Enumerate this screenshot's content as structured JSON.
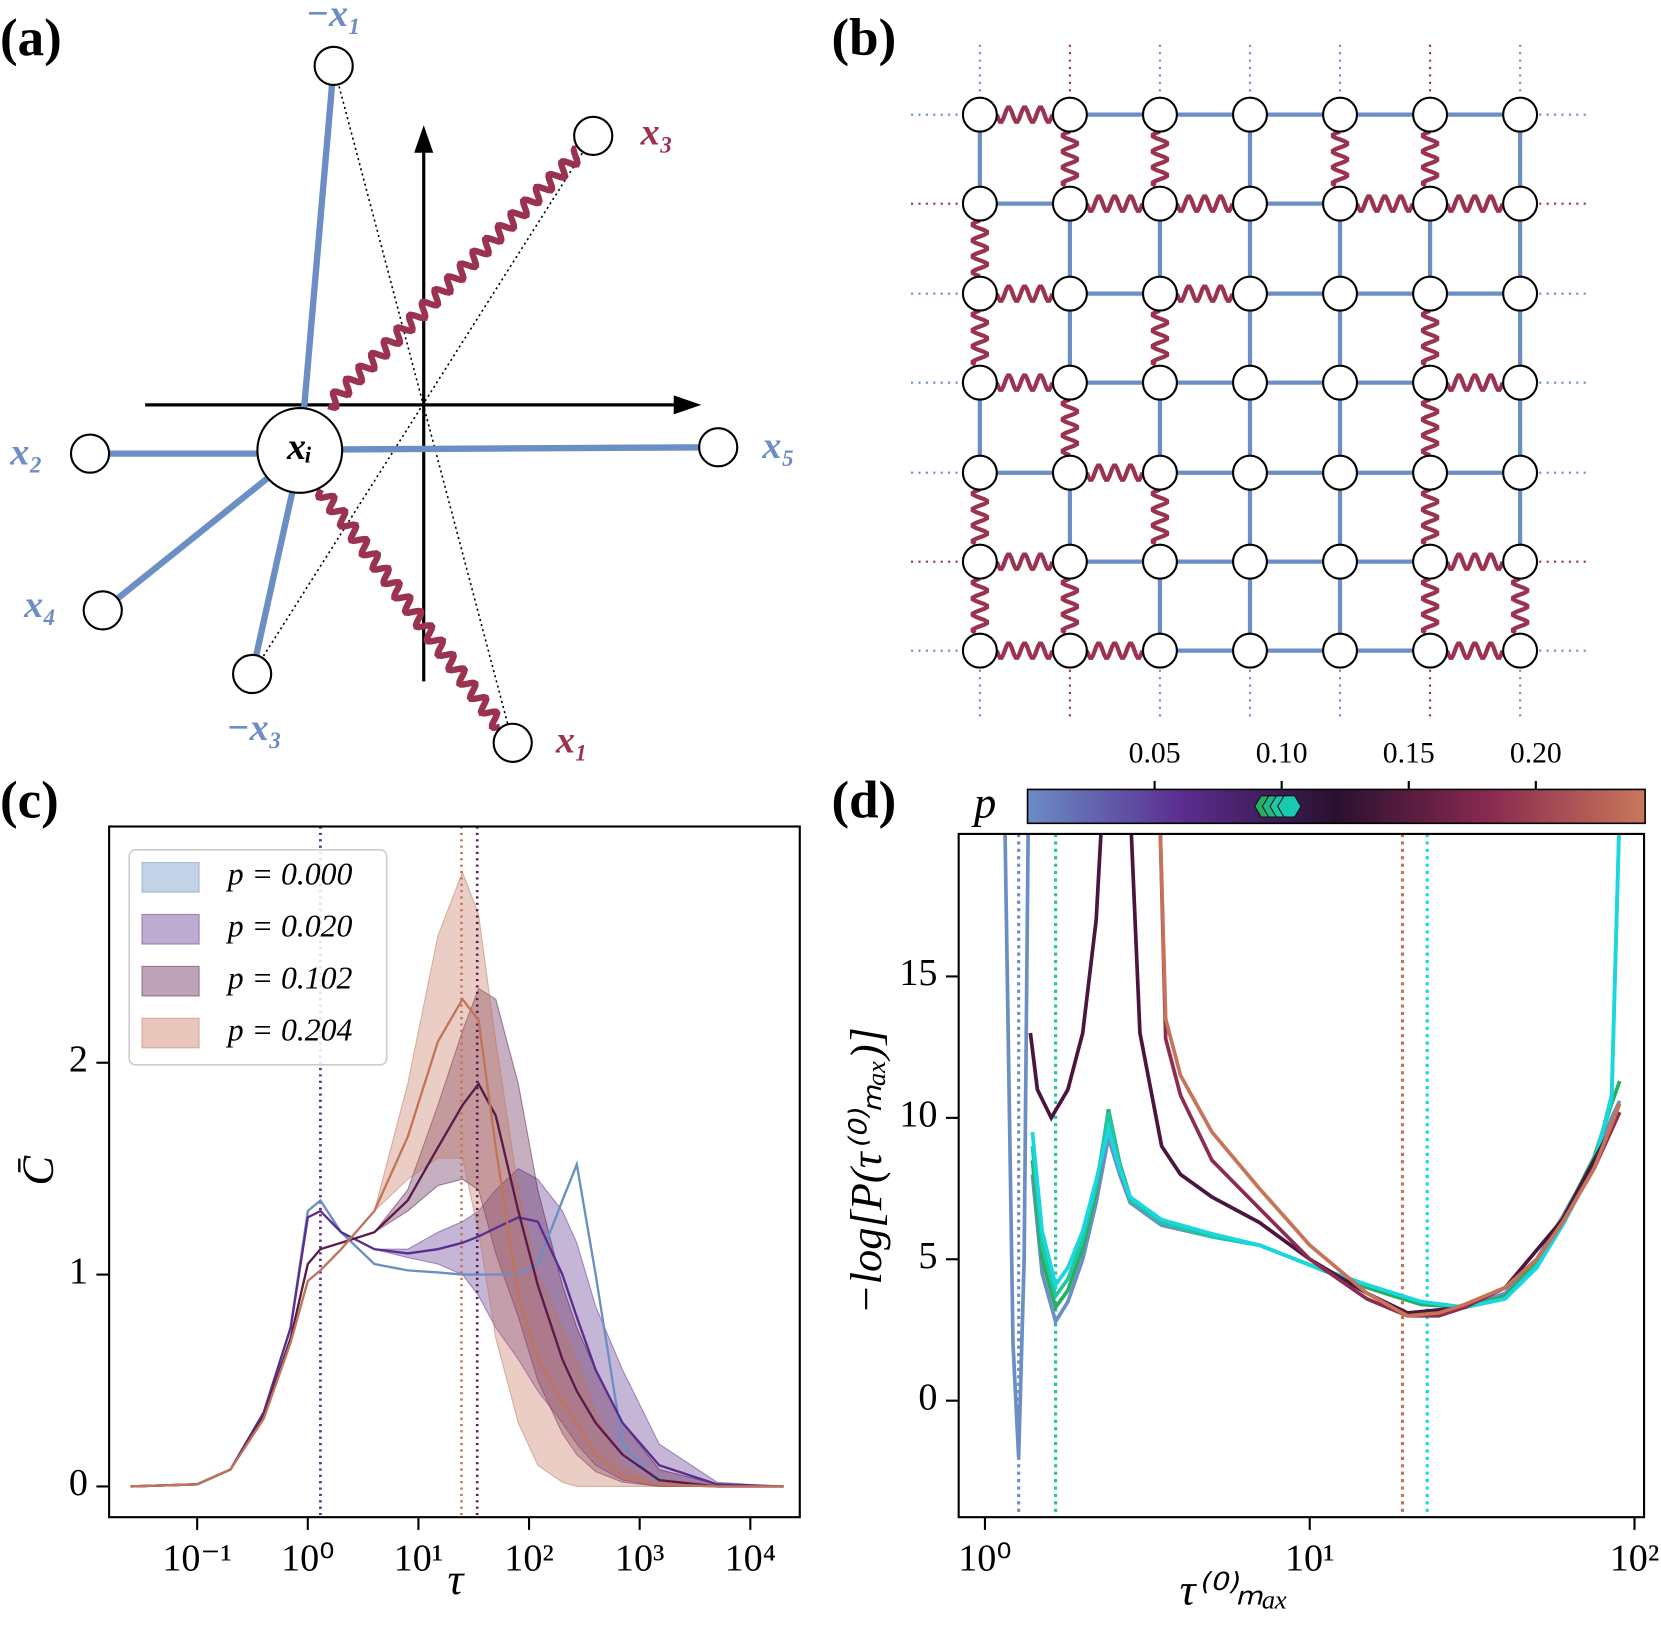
{
  "diagram_a": {
    "panel_label": "(a)",
    "labels": [
      "−x₁",
      "x₃",
      "x₂",
      "xᵢ",
      "x₅",
      "x₄",
      "−x₃",
      "x₁"
    ]
  },
  "diagram_b": {
    "panel_label": "(b)"
  },
  "chart_data": [
    {
      "type": "line",
      "panel_label": "(c)",
      "xlabel": "τ",
      "ylabel": "C̄",
      "xscale": "log",
      "xlim": [
        0.016,
        28000
      ],
      "ylim": [
        -0.145,
        3.115
      ],
      "xticks": [
        {
          "value": 0.1,
          "label": "10⁻¹"
        },
        {
          "value": 1,
          "label": "10⁰"
        },
        {
          "value": 10,
          "label": "10¹"
        },
        {
          "value": 100,
          "label": "10²"
        },
        {
          "value": 1000,
          "label": "10³"
        },
        {
          "value": 10000,
          "label": "10⁴"
        }
      ],
      "yticks": [
        0,
        1,
        2
      ],
      "legend": "upper left",
      "x": [
        0.025,
        0.1,
        0.2,
        0.4,
        0.7,
        1,
        1.3,
        2,
        4,
        8,
        15,
        25,
        35,
        50,
        80,
        120,
        200,
        270,
        400,
        700,
        1500,
        5000,
        20000
      ],
      "series": [
        {
          "name": "p = 0.000",
          "color": "#6b8ec4",
          "vline": 1.3,
          "values": [
            0,
            0.01,
            0.08,
            0.35,
            0.75,
            1.3,
            1.35,
            1.2,
            1.05,
            1.02,
            1.01,
            1.0,
            1.0,
            1.0,
            1.0,
            1.05,
            1.35,
            1.52,
            1.0,
            0.2,
            0.01,
            0,
            0
          ]
        },
        {
          "name": "p = 0.020",
          "color": "#5a2e8e",
          "vline": 1.3,
          "values": [
            0,
            0.01,
            0.08,
            0.35,
            0.75,
            1.27,
            1.3,
            1.2,
            1.12,
            1.1,
            1.12,
            1.15,
            1.18,
            1.22,
            1.27,
            1.25,
            1.0,
            0.8,
            0.55,
            0.3,
            0.1,
            0.01,
            0
          ],
          "lower": [
            0,
            0.01,
            0.08,
            0.35,
            0.75,
            1.27,
            1.3,
            1.2,
            1.12,
            1.08,
            1.05,
            1.0,
            0.9,
            0.75,
            0.6,
            0.45,
            0.3,
            0.2,
            0.1,
            0.03,
            0,
            0,
            0
          ],
          "upper": [
            0,
            0.01,
            0.08,
            0.35,
            0.75,
            1.27,
            1.3,
            1.2,
            1.12,
            1.12,
            1.2,
            1.25,
            1.3,
            1.4,
            1.5,
            1.45,
            1.3,
            1.15,
            0.85,
            0.55,
            0.2,
            0.02,
            0
          ]
        },
        {
          "name": "p = 0.102",
          "color": "#5a1a4a",
          "vline": 34,
          "values": [
            0,
            0.01,
            0.08,
            0.33,
            0.7,
            1.05,
            1.12,
            1.15,
            1.2,
            1.35,
            1.6,
            1.8,
            1.9,
            1.75,
            1.3,
            0.95,
            0.6,
            0.45,
            0.3,
            0.15,
            0.03,
            0,
            0
          ],
          "lower": [
            0,
            0.01,
            0.08,
            0.33,
            0.7,
            1.05,
            1.12,
            1.15,
            1.2,
            1.3,
            1.42,
            1.45,
            1.4,
            1.1,
            0.8,
            0.5,
            0.25,
            0.15,
            0.07,
            0.02,
            0,
            0,
            0
          ],
          "upper": [
            0,
            0.01,
            0.08,
            0.33,
            0.7,
            1.05,
            1.12,
            1.15,
            1.2,
            1.4,
            1.8,
            2.15,
            2.35,
            2.3,
            1.9,
            1.4,
            0.95,
            0.75,
            0.55,
            0.3,
            0.08,
            0.01,
            0
          ]
        },
        {
          "name": "p = 0.204",
          "color": "#c27458",
          "vline": 24.5,
          "values": [
            0,
            0.01,
            0.08,
            0.32,
            0.68,
            0.97,
            1.02,
            1.12,
            1.3,
            1.65,
            2.1,
            2.3,
            2.2,
            1.6,
            0.9,
            0.6,
            0.4,
            0.3,
            0.15,
            0.05,
            0.01,
            0,
            0
          ],
          "lower": [
            0,
            0.01,
            0.08,
            0.32,
            0.68,
            0.97,
            1.02,
            1.12,
            1.3,
            1.45,
            1.55,
            1.55,
            1.2,
            0.7,
            0.3,
            0.1,
            0.02,
            0,
            0,
            0,
            0,
            0,
            0
          ],
          "upper": [
            0,
            0.01,
            0.08,
            0.32,
            0.68,
            0.97,
            1.02,
            1.12,
            1.3,
            1.9,
            2.6,
            2.9,
            2.7,
            2.1,
            1.4,
            1.0,
            0.75,
            0.6,
            0.35,
            0.1,
            0.02,
            0,
            0
          ]
        }
      ]
    },
    {
      "type": "line",
      "panel_label": "(d)",
      "xlabel": "τ⁽⁰⁾ₘₐₓ",
      "ylabel": "−log[P(τ⁽⁰⁾ₘₐₓ)]",
      "xscale": "log",
      "xlim": [
        0.83,
        107
      ],
      "ylim": [
        -4.12,
        20.04
      ],
      "xticks": [
        {
          "value": 1,
          "label": "10⁰"
        },
        {
          "value": 10,
          "label": "10¹"
        },
        {
          "value": 100,
          "label": "10²"
        }
      ],
      "yticks": [
        0,
        5,
        10,
        15
      ],
      "colorbar": {
        "label": "p",
        "lim": [
          0,
          0.243
        ],
        "ticks": [
          0.05,
          {
            "value": 0.1,
            "label": "0.10"
          },
          0.15,
          {
            "value": 0.2,
            "label": "0.20"
          }
        ],
        "colors": [
          "#6a8cc6",
          "#5b2d8f",
          "#2a1030",
          "#8a2a50",
          "#c8785a"
        ],
        "markers": [
          0.094,
          0.097,
          0.1,
          0.103
        ],
        "marker_colors": [
          "#27ae60",
          "#1fb88a",
          "#1fc8a0",
          "#19c9b0"
        ]
      },
      "vlines": [
        {
          "value": 1.27,
          "color": "#6b8ec4"
        },
        {
          "value": 1.65,
          "color": "#1fc8a0"
        },
        {
          "value": 19.3,
          "color": "#c27458"
        },
        {
          "value": 23,
          "color": "#19d7e0"
        }
      ],
      "series": [
        {
          "color": "#6b8ec4",
          "x": [
            1.15,
            1.22,
            1.27,
            1.32,
            1.36,
            1.38,
            1.4,
            1.5,
            1.65,
            1.8,
            2.0,
            2.2,
            2.4,
            2.6,
            2.8,
            3.5,
            5,
            7,
            10,
            15,
            22,
            30,
            40,
            50,
            60,
            75,
            85,
            90
          ],
          "values": [
            21,
            2,
            -2,
            5,
            21,
            null,
            8,
            4.5,
            2.8,
            3.5,
            5,
            7,
            9.3,
            8,
            7,
            6.2,
            5.8,
            5.5,
            4.8,
            4,
            3.4,
            3.3,
            3.8,
            5,
            6.5,
            8.5,
            10,
            10.6
          ]
        },
        {
          "color": "#27ae60",
          "x": [
            1.4,
            1.5,
            1.65,
            1.8,
            2.0,
            2.2,
            2.4,
            2.6,
            2.8,
            3.5,
            5,
            7,
            10,
            15,
            22,
            30,
            40,
            50,
            60,
            75,
            85,
            90
          ],
          "values": [
            8.5,
            5,
            3.3,
            3.9,
            5.4,
            7.4,
            10.3,
            8.4,
            7.2,
            6.3,
            5.8,
            5.5,
            4.8,
            4,
            3.4,
            3.3,
            3.7,
            4.9,
            6.4,
            8.6,
            10.5,
            11.3
          ]
        },
        {
          "color": "#1fc8a0",
          "x": [
            1.4,
            1.5,
            1.65,
            1.8,
            2.0,
            2.2,
            2.4,
            2.6,
            2.8,
            3.5,
            5,
            7,
            10,
            15,
            22,
            30,
            40,
            50,
            60,
            75,
            85,
            90
          ],
          "values": [
            9,
            5.5,
            3.7,
            4.3,
            5.7,
            7.6,
            10.2,
            8.3,
            7.1,
            6.3,
            5.8,
            5.5,
            4.8,
            4.1,
            3.5,
            3.3,
            3.6,
            4.8,
            6.3,
            8.5,
            10.6,
            21
          ]
        },
        {
          "color": "#19d7e0",
          "x": [
            1.4,
            1.5,
            1.65,
            1.8,
            2.0,
            2.2,
            2.4,
            2.6,
            2.8,
            3.5,
            5,
            7,
            10,
            15,
            22,
            30,
            40,
            50,
            60,
            75,
            85,
            90
          ],
          "values": [
            9.5,
            6,
            4.1,
            4.7,
            6,
            7.8,
            9.6,
            8.2,
            7.2,
            6.4,
            5.9,
            5.5,
            4.8,
            4.1,
            3.5,
            3.3,
            3.6,
            4.7,
            6.2,
            8.3,
            10.8,
            21
          ]
        },
        {
          "color": "#4a1640",
          "x": [
            1.38,
            1.45,
            1.6,
            1.8,
            2.0,
            2.2,
            2.3,
            2.55,
            2.8,
            3.0,
            3.5,
            4,
            5,
            7,
            10,
            15,
            20,
            30,
            40,
            60,
            90
          ],
          "values": [
            13,
            11,
            10,
            11,
            13,
            17,
            21,
            null,
            21,
            13,
            9,
            8,
            7.2,
            6.3,
            5,
            3.8,
            3.1,
            3.3,
            4,
            6.4,
            10.2
          ]
        },
        {
          "color": "#8c2c50",
          "x": [
            3.45,
            3.6,
            4,
            5,
            7,
            10,
            15,
            20,
            25,
            30,
            40,
            50,
            60,
            75,
            90
          ],
          "values": [
            21,
            12.8,
            10.8,
            8.5,
            6.8,
            5,
            3.6,
            3.0,
            3.0,
            3.3,
            4,
            5,
            6.3,
            8.2,
            10.2
          ]
        },
        {
          "color": "#c67358",
          "x": [
            3.45,
            3.6,
            4,
            5,
            7,
            10,
            15,
            20,
            25,
            30,
            40,
            50,
            60,
            75,
            90
          ],
          "values": [
            21,
            13.5,
            11.5,
            9.5,
            7.5,
            5.5,
            3.8,
            3.0,
            3.1,
            3.4,
            4,
            5,
            6.3,
            8.2,
            10.5
          ]
        }
      ]
    }
  ]
}
